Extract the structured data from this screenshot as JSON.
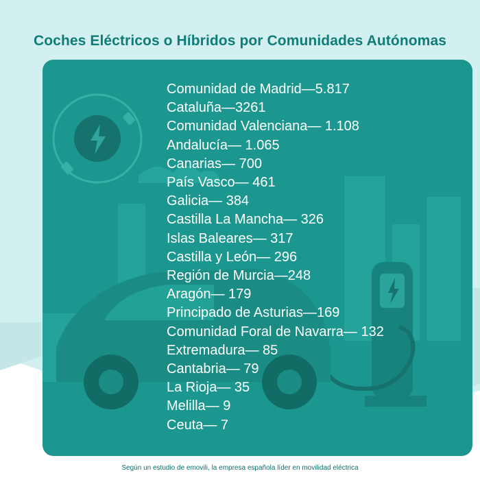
{
  "title": "Coches Eléctricos o Híbridos por Comunidades Autónomas",
  "regions": [
    "Comunidad de Madrid—5.817",
    "Cataluña—3261",
    "Comunidad Valenciana— 1.108",
    "Andalucía— 1.065",
    "Canarias— 700",
    "País Vasco— 461",
    "Galicia— 384",
    "Castilla La Mancha— 326",
    "Islas Baleares— 317",
    "Castilla y León— 296",
    "Región de Murcia—248",
    "Aragón— 179",
    "Principado de Asturias—169",
    "Comunidad Foral de Navarra— 132",
    "Extremadura— 85",
    "Cantabria— 79",
    "La Rioja— 35",
    "Melilla— 9",
    "Ceuta— 7"
  ],
  "footer": "Según un estudio de emovili, la empresa española líder en movilidad eléctrica",
  "colors": {
    "background": "#cfeeee",
    "card": "#1b978f",
    "title": "#0f7c78",
    "text": "#ffffff"
  },
  "icons": [
    "plug-charging-icon",
    "electric-car-illustration",
    "charging-station-icon"
  ]
}
